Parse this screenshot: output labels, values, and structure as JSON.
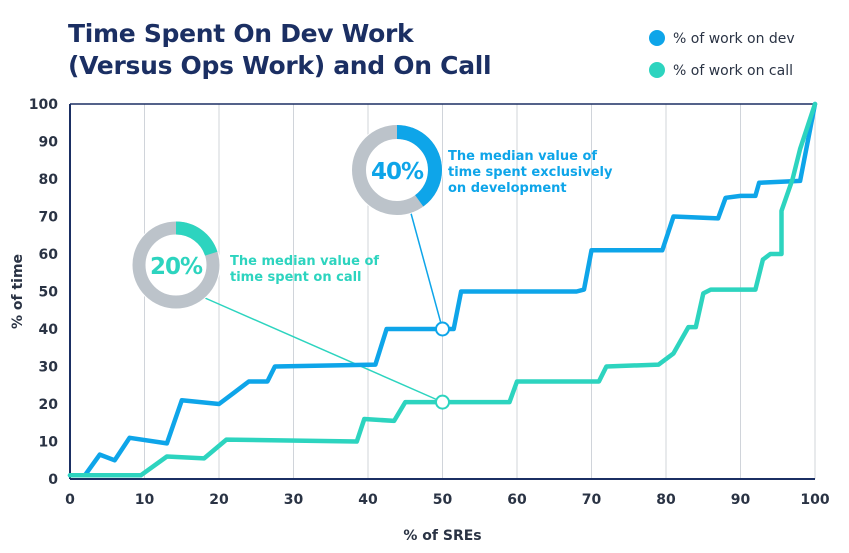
{
  "title_lines": [
    "Time Spent On Dev Work",
    "(Versus Ops Work) and On Call"
  ],
  "chart_data": {
    "type": "line",
    "title": "Time Spent On Dev Work (Versus Ops Work) and On Call",
    "xlabel": "% of SREs",
    "ylabel": "% of time",
    "xlim": [
      0,
      100
    ],
    "ylim": [
      0,
      100
    ],
    "xticks": [
      0,
      10,
      20,
      30,
      40,
      50,
      60,
      70,
      80,
      90,
      100
    ],
    "yticks": [
      0,
      10,
      20,
      30,
      40,
      50,
      60,
      70,
      80,
      90,
      100
    ],
    "grid": "vertical",
    "legend_position": "top-right",
    "series": [
      {
        "name": "% of work on dev",
        "color": "#0ea5e9",
        "points": [
          [
            0,
            1
          ],
          [
            2,
            1
          ],
          [
            4,
            6.5
          ],
          [
            6,
            5
          ],
          [
            8,
            11
          ],
          [
            13,
            9.5
          ],
          [
            15,
            21
          ],
          [
            20,
            20
          ],
          [
            22,
            23
          ],
          [
            24,
            26
          ],
          [
            26.5,
            26
          ],
          [
            27.5,
            30
          ],
          [
            41,
            30.5
          ],
          [
            42.5,
            40
          ],
          [
            50,
            40
          ],
          [
            51.5,
            40
          ],
          [
            52.5,
            50
          ],
          [
            68,
            50
          ],
          [
            69,
            50.5
          ],
          [
            70,
            61
          ],
          [
            78,
            61
          ],
          [
            79.5,
            61
          ],
          [
            81,
            70
          ],
          [
            87,
            69.5
          ],
          [
            88,
            75
          ],
          [
            90,
            75.5
          ],
          [
            92,
            75.5
          ],
          [
            92.5,
            79
          ],
          [
            98,
            79.5
          ],
          [
            100,
            100
          ]
        ]
      },
      {
        "name": "% of work on call",
        "color": "#2dd4bf",
        "points": [
          [
            0,
            1
          ],
          [
            9.5,
            1
          ],
          [
            13,
            6
          ],
          [
            18,
            5.5
          ],
          [
            21,
            10.5
          ],
          [
            38.5,
            10
          ],
          [
            39.5,
            16
          ],
          [
            43.5,
            15.5
          ],
          [
            45,
            20.5
          ],
          [
            50,
            20.5
          ],
          [
            59,
            20.5
          ],
          [
            60,
            26
          ],
          [
            71,
            26
          ],
          [
            72,
            30
          ],
          [
            79,
            30.5
          ],
          [
            81,
            33.5
          ],
          [
            83,
            40.5
          ],
          [
            84,
            40.5
          ],
          [
            85,
            49.5
          ],
          [
            86,
            50.5
          ],
          [
            92,
            50.5
          ],
          [
            93,
            58.5
          ],
          [
            94,
            60
          ],
          [
            95.5,
            60
          ],
          [
            95.5,
            71.5
          ],
          [
            97,
            80
          ],
          [
            98,
            88
          ],
          [
            100,
            100
          ]
        ]
      }
    ],
    "markers": [
      {
        "series": 0,
        "x": 50,
        "y": 40
      },
      {
        "series": 1,
        "x": 50,
        "y": 20.5
      }
    ],
    "annotations": [
      {
        "value_text": "40%",
        "fraction": 0.4,
        "color": "#0ea5e9",
        "lines": [
          "The median value of",
          "time spent exclusively",
          "on development"
        ]
      },
      {
        "value_text": "20%",
        "fraction": 0.2,
        "color": "#2dd4bf",
        "lines": [
          "The median value of",
          "time spent on call"
        ]
      }
    ]
  },
  "legend": [
    {
      "label": "% of work on dev",
      "color": "#0ea5e9"
    },
    {
      "label": "% of work on call",
      "color": "#2dd4bf"
    }
  ],
  "colors": {
    "axis": "#1b2f63",
    "grid": "#d0d4da",
    "text": "#2a3344",
    "donut_track": "#bcc3ca"
  }
}
